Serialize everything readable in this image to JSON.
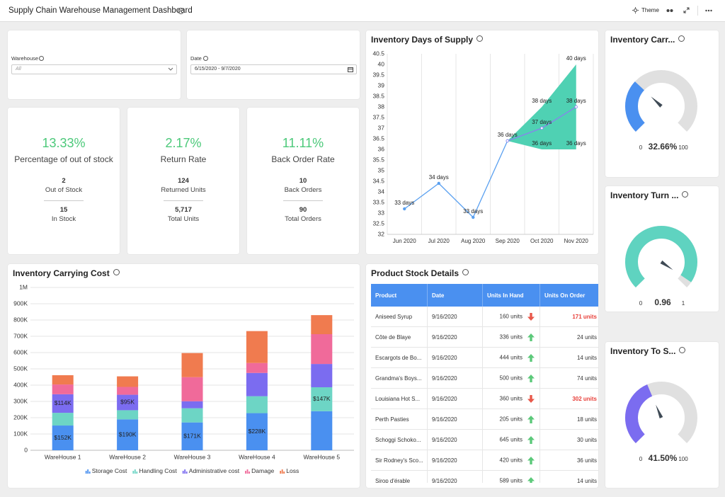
{
  "header": {
    "title": "Supply Chain Warehouse Management Dashboard",
    "theme": "Theme"
  },
  "filters": [
    {
      "label": "Warehouse",
      "value": "All"
    },
    {
      "label": "Date",
      "value": "6/15/2020 - 9/7/2020"
    }
  ],
  "kpis": [
    {
      "value": "13.33%",
      "title": "Percentage of out of stock",
      "stats": [
        {
          "value": "2",
          "label": "Out of Stock"
        },
        {
          "value": "15",
          "label": "In Stock"
        }
      ]
    },
    {
      "value": "2.17%",
      "title": "Return Rate",
      "stats": [
        {
          "value": "124",
          "label": "Returned Units"
        },
        {
          "value": "5,717",
          "label": "Total Units"
        }
      ]
    },
    {
      "value": "11.11%",
      "title": "Back Order Rate",
      "stats": [
        {
          "value": "10",
          "label": "Back Orders"
        },
        {
          "value": "90",
          "label": "Total Orders"
        }
      ]
    }
  ],
  "days_of_supply": {
    "type": "line",
    "title": "Inventory Days of Supply",
    "categories": [
      "Jun 2020",
      "Jul 2020",
      "Aug 2020",
      "Sep 2020",
      "Oct 2020",
      "Nov 2020"
    ],
    "series": [
      {
        "color": "#5aa0f0",
        "marker_fill": "#5aa0f0",
        "values": [
          33.2,
          34.4,
          32.8,
          36.4,
          null,
          null
        ],
        "value_labels": [
          "33 days",
          "34 days",
          "33 days",
          "36 days",
          null,
          null
        ]
      },
      {
        "color": "#8a7ff0",
        "marker_fill": "#ffffff",
        "values": [
          null,
          null,
          null,
          36.4,
          37,
          38
        ],
        "value_labels": [
          null,
          null,
          null,
          null,
          "37 days",
          "38 days"
        ]
      }
    ],
    "band": {
      "color": "#4fd1b3",
      "upper": [
        null,
        null,
        null,
        36.4,
        38,
        40
      ],
      "upper_labels": [
        null,
        null,
        null,
        null,
        "38 days",
        "40 days"
      ],
      "lower": [
        null,
        null,
        null,
        36.4,
        36,
        36
      ],
      "lower_labels": [
        null,
        null,
        null,
        null,
        "36 days",
        "36 days"
      ]
    },
    "ylim": [
      32,
      40.5
    ],
    "yticks": [
      32,
      32.5,
      33,
      33.5,
      34,
      34.5,
      35,
      35.5,
      36,
      36.5,
      37,
      37.5,
      38,
      38.5,
      39,
      39.5,
      40,
      40.5
    ],
    "grid": true
  },
  "carrying_cost": {
    "type": "stacked_bar",
    "title": "Inventory Carrying Cost",
    "categories": [
      "WareHouse 1",
      "WareHouse 2",
      "WareHouse 3",
      "WareHouse 4",
      "WareHouse 5"
    ],
    "series": [
      {
        "name": "Storage Cost",
        "color": "#4a90f0",
        "values": [
          152000,
          190000,
          171000,
          228000,
          240000
        ],
        "value_labels": [
          "$152K",
          "$190K",
          "$171K",
          "$228K",
          null
        ]
      },
      {
        "name": "Handling Cost",
        "color": "#6dd5c5",
        "values": [
          78000,
          56000,
          87000,
          104000,
          147000
        ],
        "value_labels": [
          null,
          null,
          null,
          null,
          "$147K"
        ]
      },
      {
        "name": "Administrative cost",
        "color": "#7b6cf0",
        "values": [
          114000,
          95000,
          43000,
          143000,
          143000
        ],
        "value_labels": [
          "$114K",
          "$95K",
          null,
          null,
          null
        ]
      },
      {
        "name": "Damage",
        "color": "#f06a9a",
        "values": [
          60000,
          48000,
          148000,
          61000,
          183000
        ]
      },
      {
        "name": "Loss",
        "color": "#f07b4f",
        "values": [
          57000,
          65000,
          148000,
          196000,
          117000
        ]
      }
    ],
    "ylim": [
      0,
      1000000
    ],
    "yticks": [
      0,
      {
        "value": 100000,
        "label": "100K"
      },
      {
        "value": 200000,
        "label": "200K"
      },
      {
        "value": 300000,
        "label": "300K"
      },
      {
        "value": 400000,
        "label": "400K"
      },
      {
        "value": 500000,
        "label": "500K"
      },
      {
        "value": 600000,
        "label": "600K"
      },
      {
        "value": 700000,
        "label": "700K"
      },
      {
        "value": 800000,
        "label": "800K"
      },
      {
        "value": 900000,
        "label": "900K"
      },
      {
        "value": 1000000,
        "label": "1M"
      }
    ],
    "grid": true
  },
  "stock_details": {
    "title": "Product Stock Details",
    "columns": [
      "Product",
      "Date",
      "Units In Hand",
      "Units On Order"
    ],
    "rows": [
      {
        "product": "Aniseed Syrup",
        "date": "9/16/2020",
        "in_hand": "160 units",
        "trend": "down",
        "on_order": "171 units"
      },
      {
        "product": "Côte de Blaye",
        "date": "9/16/2020",
        "in_hand": "336 units",
        "trend": "up",
        "on_order": "24 units"
      },
      {
        "product": "Escargots de Bo...",
        "date": "9/16/2020",
        "in_hand": "444 units",
        "trend": "up",
        "on_order": "14 units"
      },
      {
        "product": "Grandma's Boys...",
        "date": "9/16/2020",
        "in_hand": "500 units",
        "trend": "up",
        "on_order": "74 units"
      },
      {
        "product": "Louisiana Hot S...",
        "date": "9/16/2020",
        "in_hand": "360 units",
        "trend": "down",
        "on_order": "302 units"
      },
      {
        "product": "Perth Pasties",
        "date": "9/16/2020",
        "in_hand": "205 units",
        "trend": "up",
        "on_order": "18 units"
      },
      {
        "product": "Schoggi Schoko...",
        "date": "9/16/2020",
        "in_hand": "645 units",
        "trend": "up",
        "on_order": "30 units"
      },
      {
        "product": "Sir Rodney's Sco...",
        "date": "9/16/2020",
        "in_hand": "420 units",
        "trend": "up",
        "on_order": "36 units"
      },
      {
        "product": "Sirop d'érable",
        "date": "9/16/2020",
        "in_hand": "589 units",
        "trend": "up",
        "on_order": "14 units"
      }
    ]
  },
  "gauges": [
    {
      "type": "gauge",
      "title": "Inventory Carr...",
      "value": 32.66,
      "value_label": "32.66%",
      "min": 0,
      "max": 100,
      "color": "#4a90f0"
    },
    {
      "type": "gauge",
      "title": "Inventory Turn ...",
      "value": 0.96,
      "value_label": "0.96",
      "min": 0,
      "max": 1,
      "color": "#5fd3c0"
    },
    {
      "type": "gauge",
      "title": "Inventory To S...",
      "value": 41.5,
      "value_label": "41.50%",
      "min": 0,
      "max": 100,
      "color": "#7b6cf0"
    }
  ]
}
